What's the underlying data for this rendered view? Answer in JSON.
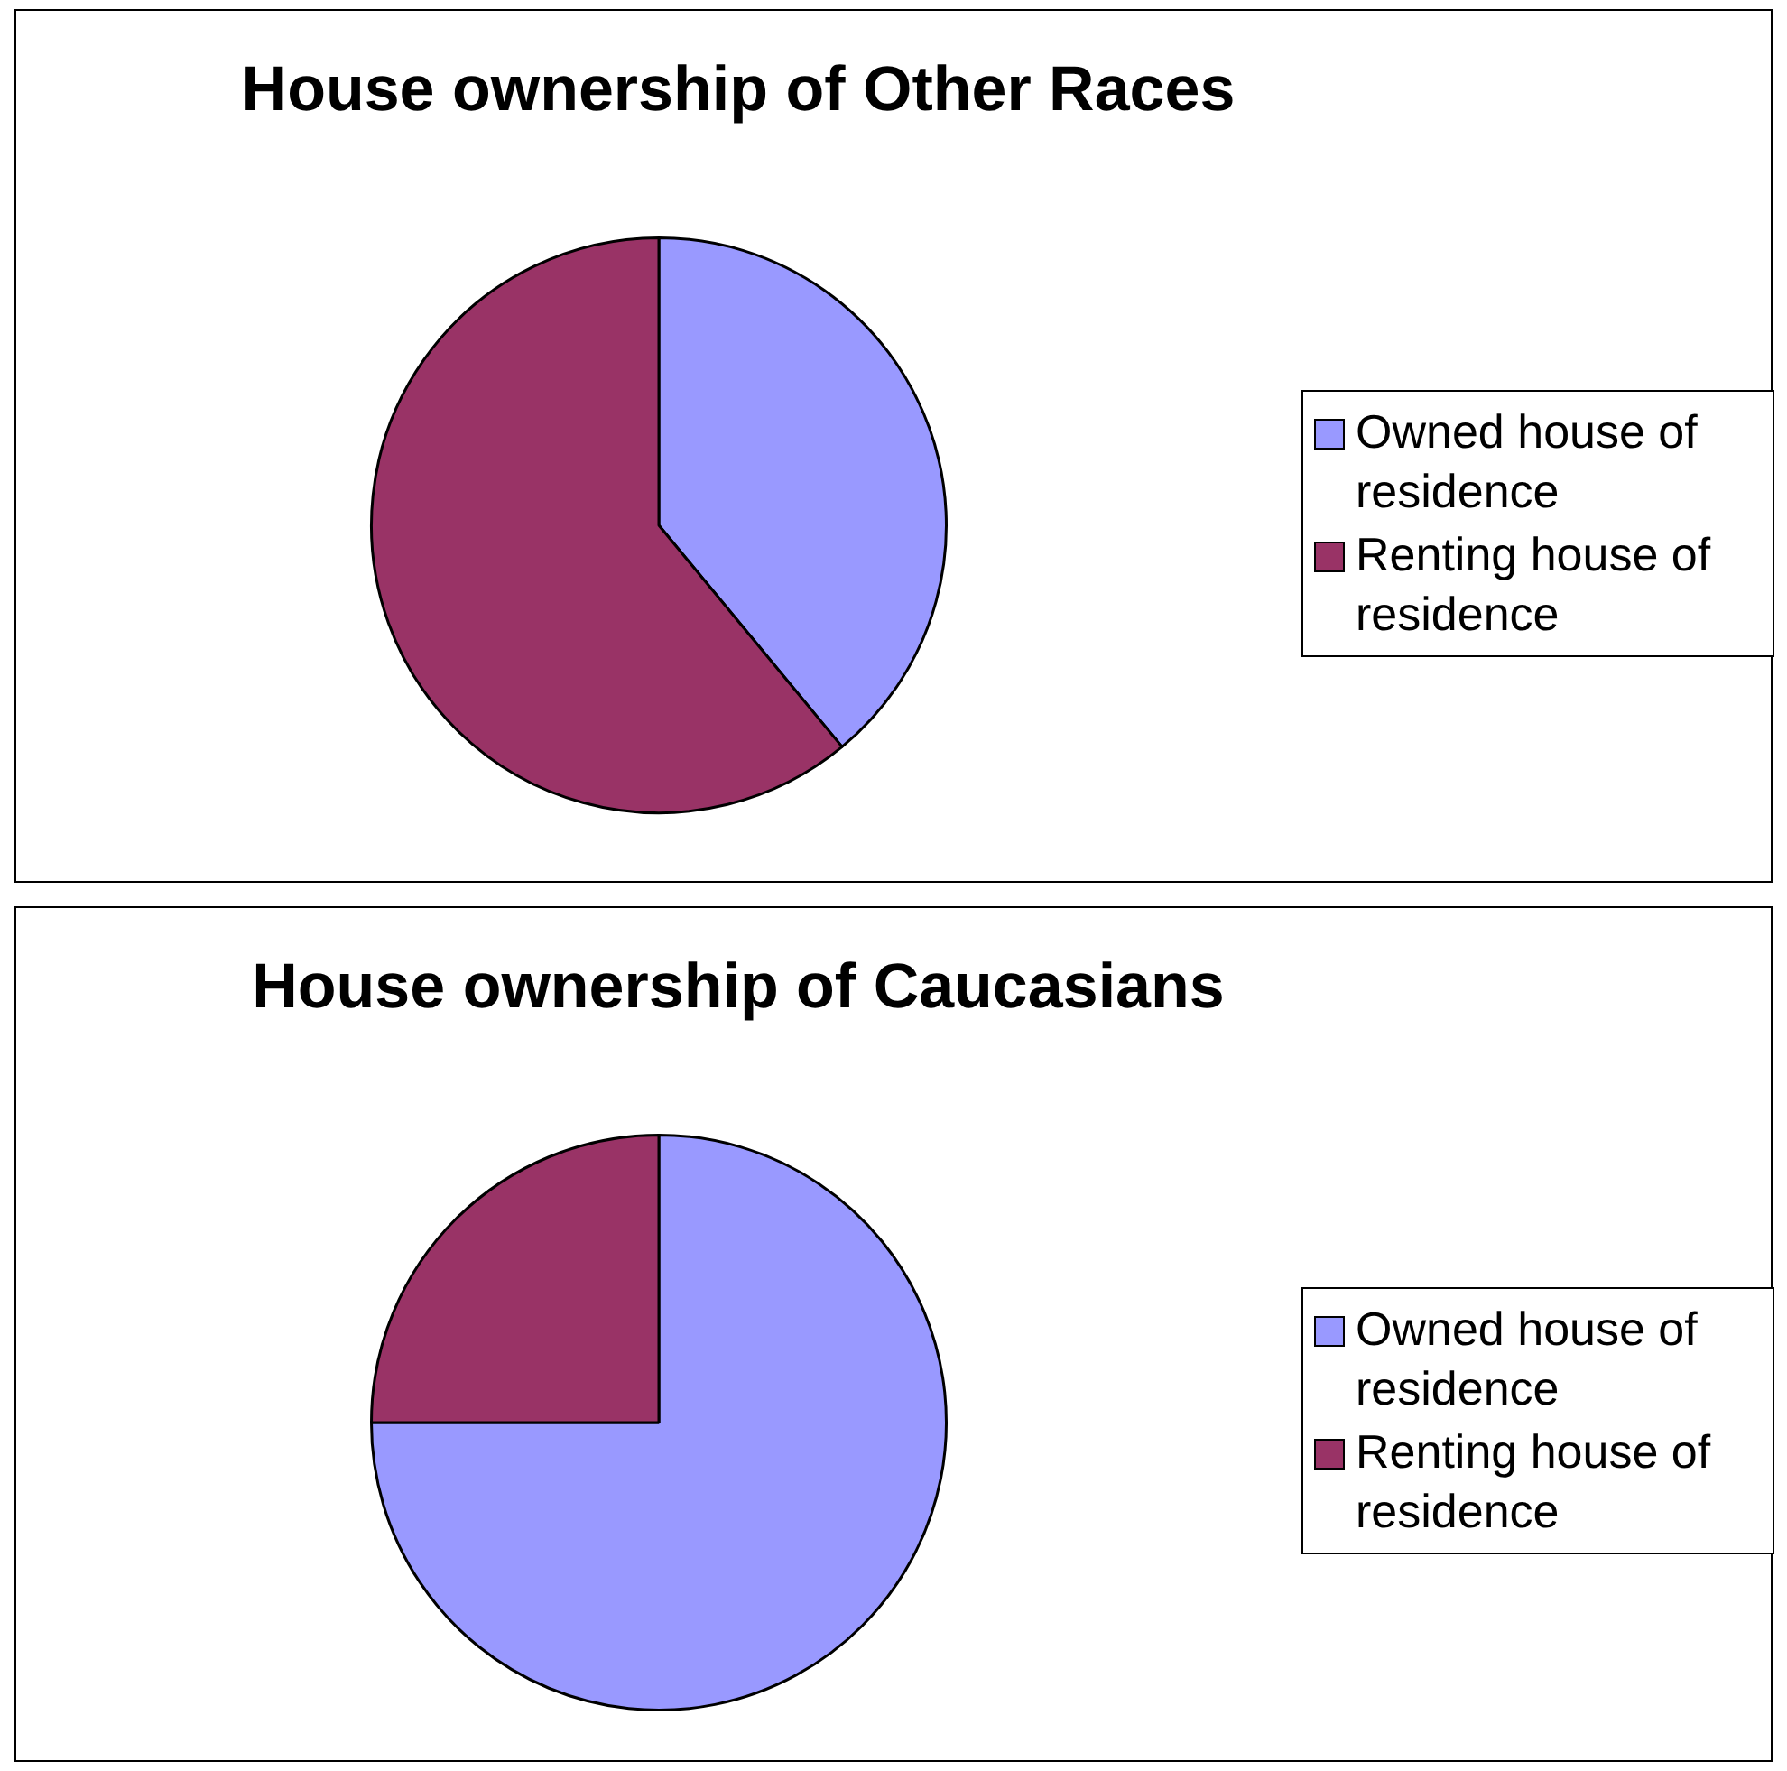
{
  "chart_data": [
    {
      "type": "pie",
      "title": "House ownership of Other Races",
      "categories": [
        "Owned house of residence",
        "Renting house of residence"
      ],
      "values": [
        39,
        61
      ],
      "colors": [
        "#9999ff",
        "#993366"
      ],
      "legend": "right"
    },
    {
      "type": "pie",
      "title": "House ownership of Caucasians",
      "categories": [
        "Owned house of residence",
        "Renting house of residence"
      ],
      "values": [
        75,
        25
      ],
      "colors": [
        "#9999ff",
        "#993366"
      ],
      "legend": "right"
    }
  ]
}
